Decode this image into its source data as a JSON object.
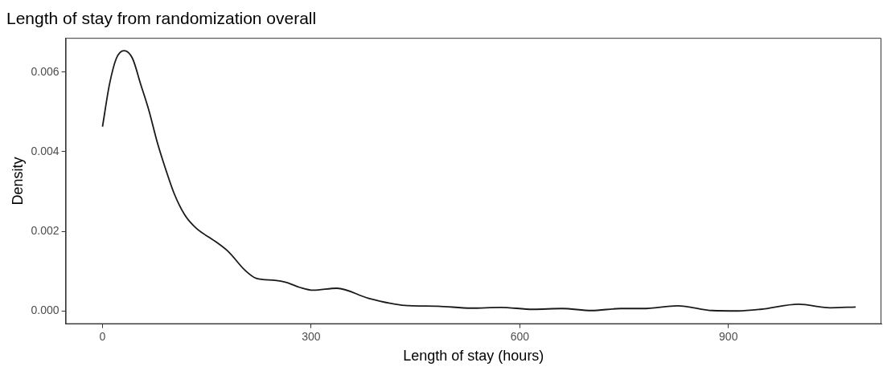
{
  "chart_data": {
    "type": "line",
    "title": "Length of stay from randomization overall",
    "xlabel": "Length of stay (hours)",
    "ylabel": "Density",
    "series": [
      {
        "color": "#1a1a1a",
        "x": [
          0,
          10,
          20,
          31,
          43,
          55,
          67,
          79,
          91,
          103,
          118,
          134,
          162,
          181,
          205,
          221,
          248,
          264,
          284,
          303,
          337,
          382,
          435,
          482,
          530,
          572,
          619,
          661,
          703,
          745,
          777,
          827,
          877,
          914,
          946,
          1001,
          1046,
          1083
        ],
        "values": [
          0.00463,
          0.00569,
          0.00635,
          0.00654,
          0.00635,
          0.00569,
          0.00502,
          0.00422,
          0.00355,
          0.00295,
          0.00242,
          0.00209,
          0.00175,
          0.00149,
          0.00102,
          0.00082,
          0.00077,
          0.00072,
          0.00059,
          0.00052,
          0.00057,
          0.00032,
          0.00014,
          0.00012,
          7e-05,
          9e-05,
          4e-05,
          6e-05,
          1e-05,
          6e-05,
          6e-05,
          0.00013,
          1e-05,
          0,
          4e-05,
          0.00017,
          8e-05,
          0.0001
        ]
      }
    ],
    "xlim": [
      -53,
      1120
    ],
    "xticks": [
      0,
      300,
      600,
      900
    ],
    "ylim": [
      -0.00033,
      0.00686
    ],
    "yticks": [
      {
        "value": 0,
        "label": "0.000"
      },
      {
        "value": 0.002,
        "label": "0.002"
      },
      {
        "value": 0.004,
        "label": "0.004"
      },
      {
        "value": 0.006,
        "label": "0.006"
      }
    ],
    "grid": false,
    "legend": false,
    "marker": "none",
    "line_style": "solid"
  }
}
